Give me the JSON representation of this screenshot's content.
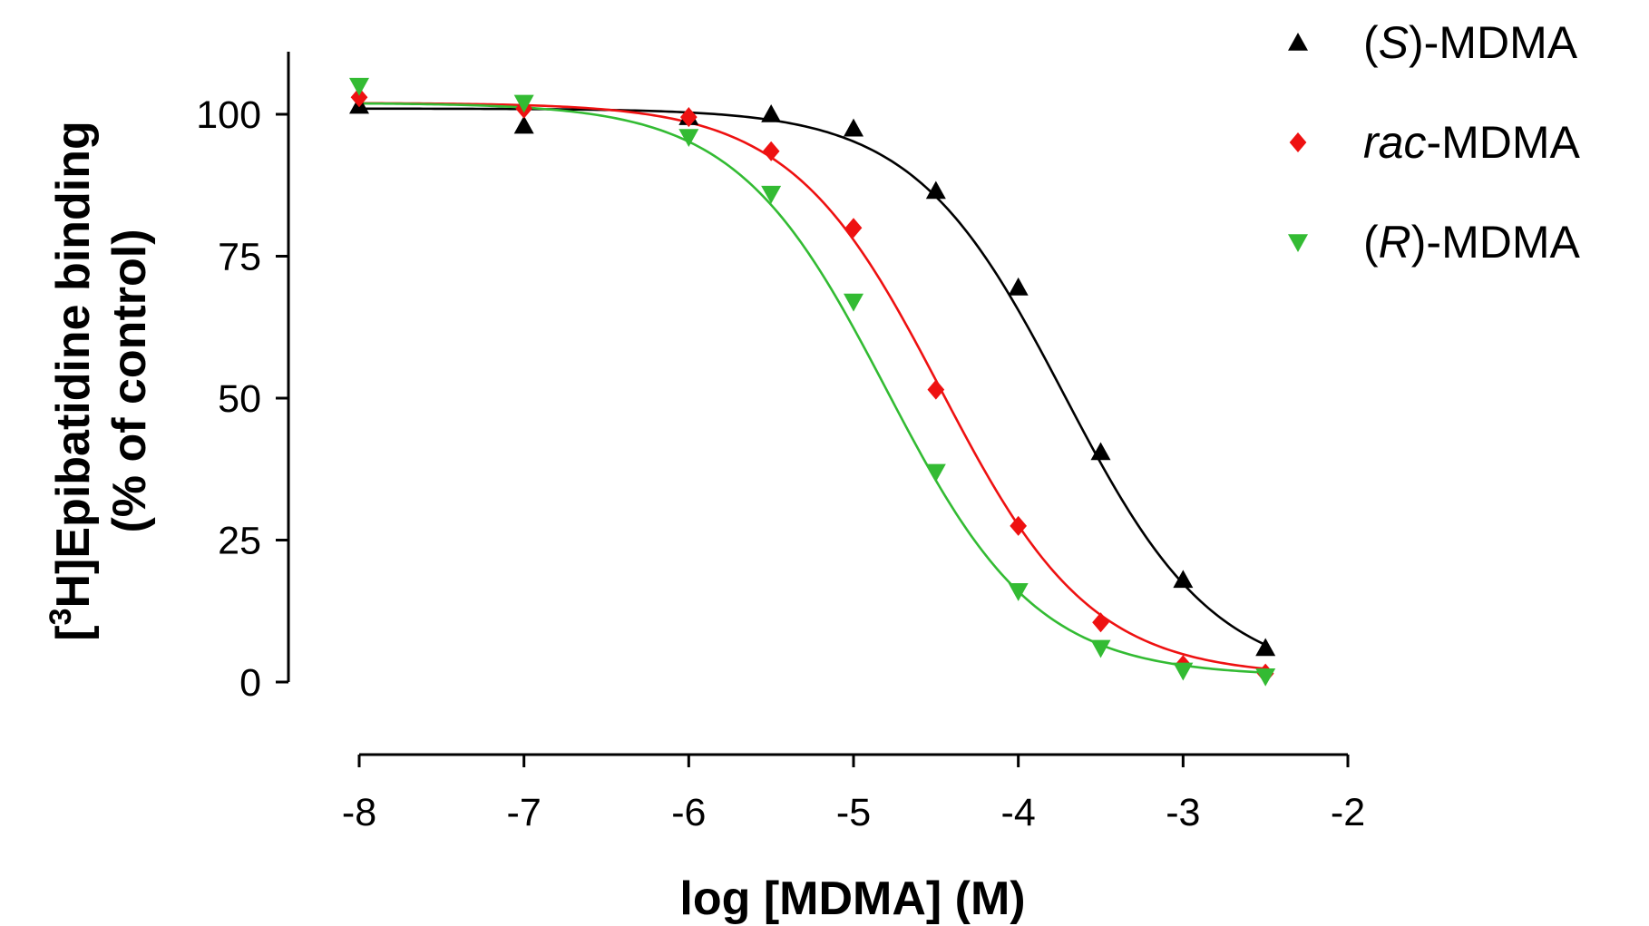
{
  "chart_data": {
    "type": "scatter",
    "title": "",
    "xlabel": "log [MDMA] (M)",
    "ylabel": {
      "bracket_open": "[",
      "superscript": "3",
      "main": "H]Epibatidine binding",
      "line2": "(% of control)"
    },
    "xlim": [
      -8,
      -2
    ],
    "ylim": [
      0,
      100
    ],
    "x_ticks": [
      -8,
      -7,
      -6,
      -5,
      -4,
      -3,
      -2
    ],
    "x_tick_labels": [
      "-8",
      "-7",
      "-6",
      "-5",
      "-4",
      "-3",
      "-2"
    ],
    "y_ticks": [
      0,
      25,
      50,
      75,
      100
    ],
    "y_tick_labels": [
      "0",
      "25",
      "50",
      "75",
      "100"
    ],
    "legend_position": "top-right",
    "x": [
      -8,
      -7,
      -6,
      -5.5,
      -5,
      -4.5,
      -4,
      -3.5,
      -3,
      -2.5
    ],
    "series": [
      {
        "name_prefix": "(",
        "name_italic": "S",
        "name_suffix": ")-MDMA",
        "marker": "triangle-up",
        "color": "#000000",
        "values": [
          101.5,
          98,
          99.5,
          100,
          97.5,
          86.5,
          69.5,
          40.5,
          18,
          6
        ],
        "fit": {
          "top": 101,
          "bottom": 0,
          "log_ic50": -3.72,
          "hill": 0.95
        }
      },
      {
        "name_prefix": "",
        "name_italic": "rac",
        "name_suffix": "-MDMA",
        "marker": "diamond",
        "color": "#ee1111",
        "values": [
          103,
          101,
          99.5,
          93.5,
          80,
          51.5,
          27.5,
          10.5,
          3,
          1.5
        ],
        "fit": {
          "top": 102,
          "bottom": 1,
          "log_ic50": -4.47,
          "hill": 0.95
        }
      },
      {
        "name_prefix": "(",
        "name_italic": "R",
        "name_suffix": ")-MDMA",
        "marker": "triangle-down",
        "color": "#33bb33",
        "values": [
          105,
          102,
          96,
          86,
          67,
          37,
          16,
          6,
          2,
          1
        ],
        "fit": {
          "top": 102,
          "bottom": 1,
          "log_ic50": -4.8,
          "hill": 0.95
        }
      }
    ]
  }
}
